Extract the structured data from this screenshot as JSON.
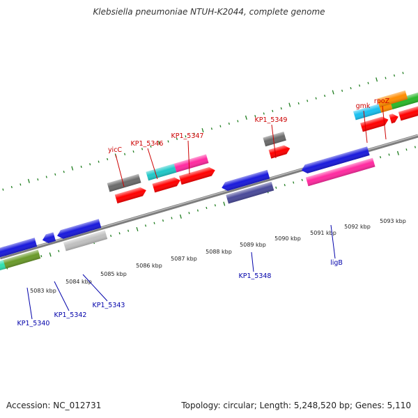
{
  "title": "Klebsiella pneumoniae NTUH-K2044, complete genome",
  "footer": {
    "accession": "Accession: NC_012731",
    "summary": "Topology: circular; Length: 5,248,520 bp; Genes: 5,110"
  },
  "axis": {
    "unit": "kbp",
    "ticks": [
      "5083 kbp",
      "5084 kbp",
      "5085 kbp",
      "5086 kbp",
      "5087 kbp",
      "5088 kbp",
      "5089 kbp",
      "5090 kbp",
      "5091 kbp",
      "5092 kbp",
      "5093 kbp"
    ]
  },
  "colors": {
    "forward_label": "#cc0000",
    "reverse_label": "#0000aa",
    "tick": "#1e7d1e",
    "backbone": "#808080",
    "cds": "#ff0000"
  },
  "forward_labels": [
    "yicC",
    "KP1_5346",
    "KP1_5347",
    "KP1_5349",
    "gmk",
    "rpoZ"
  ],
  "reverse_labels": [
    "KP1_5340",
    "KP1_5342",
    "KP1_5343",
    "KP1_5348",
    "ligB"
  ]
}
